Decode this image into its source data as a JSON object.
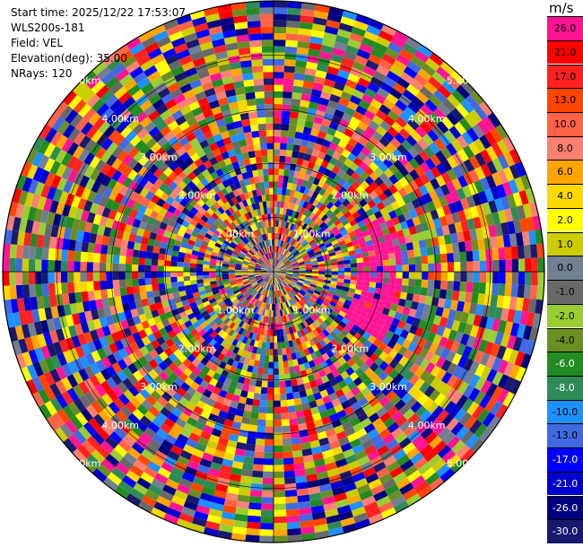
{
  "info": {
    "start_time": "Start time: 2025/12/22 17:53:07",
    "instrument": "WLS200s-181",
    "field": "Field: VEL",
    "elevation": "Elevation(deg): 35.00",
    "nrays": "NRays: 120"
  },
  "chart_data": {
    "type": "heatmap",
    "projection": "polar-ppi",
    "n_rays": 120,
    "range_rings_km": [
      1,
      2,
      3,
      4,
      5
    ],
    "ring_label": "km",
    "range_labels": [
      "1.00km",
      "2.00km",
      "3.00km",
      "4.00km",
      "5.00km"
    ],
    "colorbar": {
      "unit": "m/s",
      "ticks": [
        "26.0",
        "21.0",
        "17.0",
        "13.0",
        "10.0",
        "8.0",
        "6.0",
        "4.0",
        "2.0",
        "1.0",
        "0.0",
        "-1.0",
        "-2.0",
        "-4.0",
        "-6.0",
        "-8.0",
        "-10.0",
        "-13.0",
        "-17.0",
        "-21.0",
        "-26.0",
        "-30.0"
      ],
      "colors": [
        "#ff1493",
        "#ff0000",
        "#ff2020",
        "#ff4500",
        "#ff6347",
        "#fa8072",
        "#ffa500",
        "#ffd700",
        "#ffff00",
        "#cccc00",
        "#708090",
        "#696969",
        "#9acd32",
        "#6b8e23",
        "#228b22",
        "#2e8b57",
        "#1e90ff",
        "#4169e1",
        "#0000ff",
        "#0000cd",
        "#000080",
        "#191970"
      ]
    }
  }
}
